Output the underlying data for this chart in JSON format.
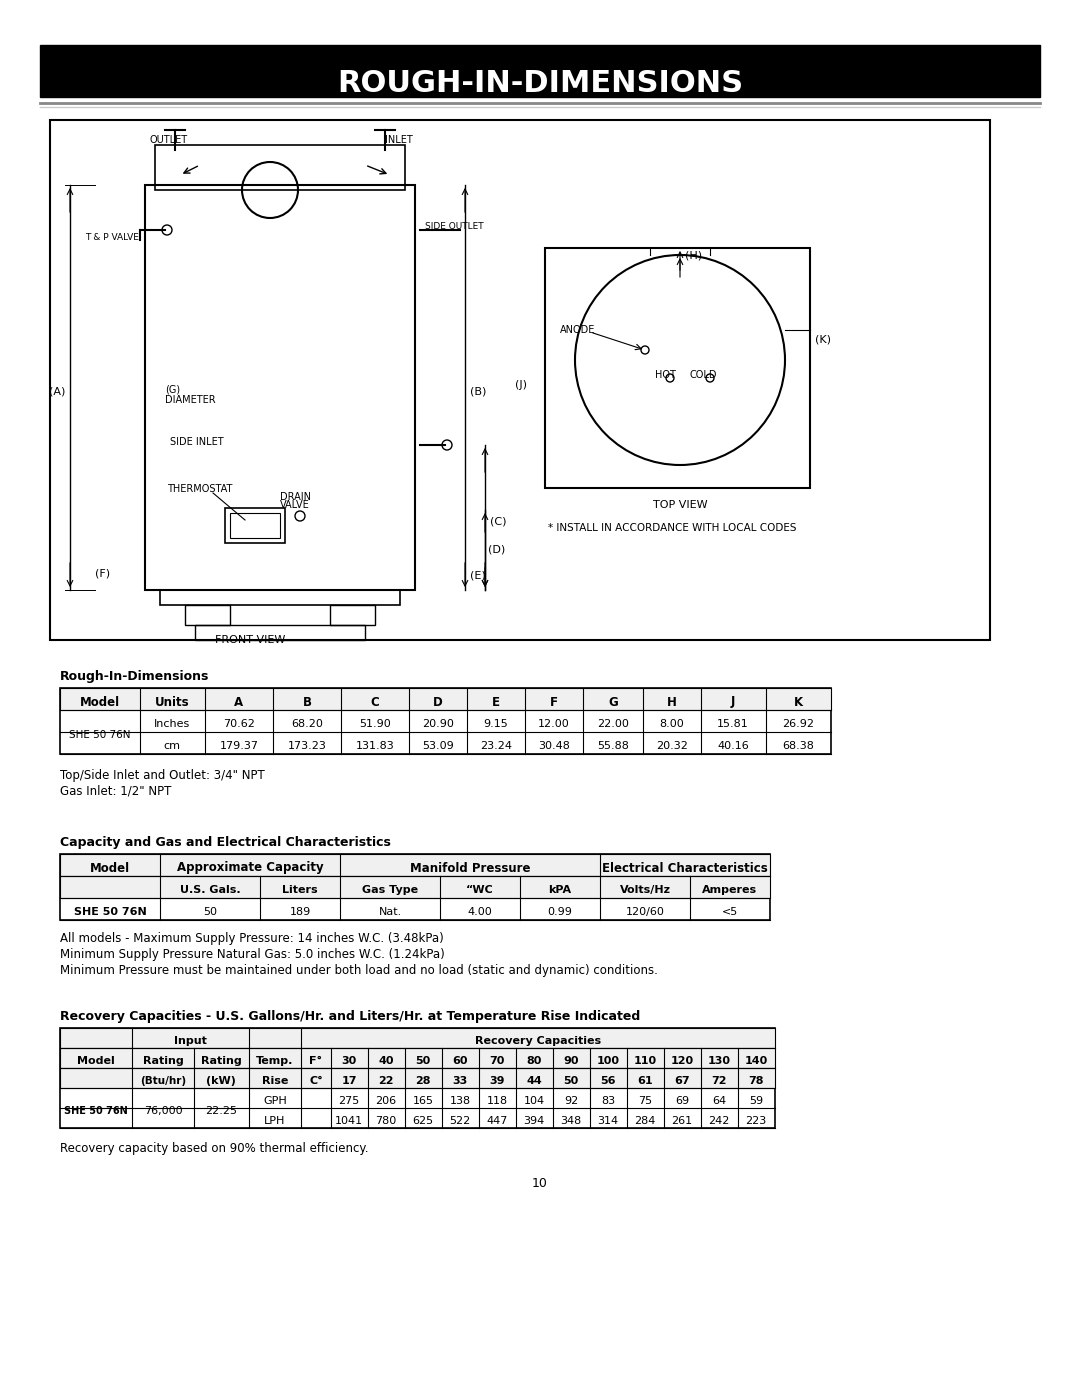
{
  "title": "ROUGH-IN-DIMENSIONS",
  "page_num": "10",
  "rough_in_table": {
    "headers": [
      "Model",
      "Units",
      "A",
      "B",
      "C",
      "D",
      "E",
      "F",
      "G",
      "H",
      "J",
      "K"
    ],
    "row1_label": "SHE 50 76N",
    "row1_units": "Inches",
    "row1_values": [
      "70.62",
      "68.20",
      "51.90",
      "20.90",
      "9.15",
      "12.00",
      "22.00",
      "8.00",
      "15.81",
      "26.92"
    ],
    "row2_units": "cm",
    "row2_values": [
      "179.37",
      "173.23",
      "131.83",
      "53.09",
      "23.24",
      "30.48",
      "55.88",
      "20.32",
      "40.16",
      "68.38"
    ]
  },
  "rough_in_notes": [
    "Top/Side Inlet and Outlet: 3/4\" NPT",
    "Gas Inlet: 1/2\" NPT"
  ],
  "capacity_table": {
    "header1": [
      "Model",
      "Approximate Capacity",
      "",
      "Manifold Pressure",
      "",
      "",
      "Electrical Characteristics",
      ""
    ],
    "header2": [
      "",
      "U.S. Gals.",
      "Liters",
      "Gas Type",
      "\"WC",
      "kPA",
      "Volts/Hz",
      "Amperes"
    ],
    "row": [
      "SHE 50 76N",
      "50",
      "189",
      "Nat.",
      "4.00",
      "0.99",
      "120/60",
      "<5"
    ]
  },
  "capacity_notes": [
    "All models - Maximum Supply Pressure: 14 inches W.C. (3.48kPa)",
    "Minimum Supply Pressure Natural Gas: 5.0 inches W.C. (1.24kPa)",
    "Minimum Pressure must be maintained under both load and no load (static and dynamic) conditions."
  ],
  "recovery_table": {
    "temp_rise_f": [
      "30",
      "40",
      "50",
      "60",
      "70",
      "80",
      "90",
      "100",
      "110",
      "120",
      "130",
      "140"
    ],
    "temp_rise_c": [
      "17",
      "22",
      "28",
      "33",
      "39",
      "44",
      "50",
      "56",
      "61",
      "67",
      "72",
      "78"
    ],
    "gph": [
      "275",
      "206",
      "165",
      "138",
      "118",
      "104",
      "92",
      "83",
      "75",
      "69",
      "64",
      "59"
    ],
    "lph": [
      "1041",
      "780",
      "625",
      "522",
      "447",
      "394",
      "348",
      "314",
      "284",
      "261",
      "242",
      "223"
    ],
    "model": "SHE 50 76N",
    "rating_btu": "76,000",
    "rating_kw": "22.25"
  },
  "recovery_note": "Recovery capacity based on 90% thermal efficiency."
}
